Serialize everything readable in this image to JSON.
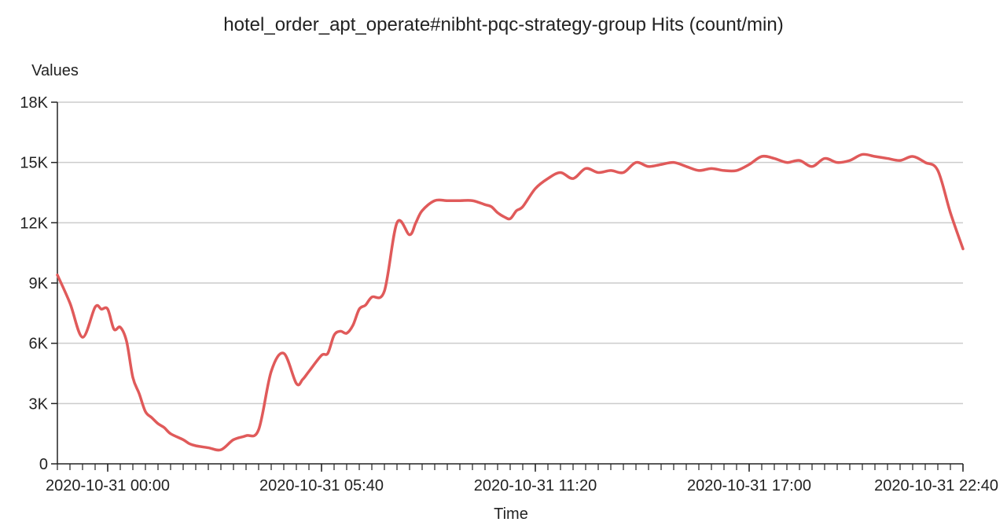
{
  "chart_data": {
    "type": "line",
    "title": "hotel_order_apt_operate#nibht-pqc-strategy-group Hits (count/min)",
    "xlabel": "Time",
    "ylabel": "Values",
    "ylim": [
      0,
      18000
    ],
    "yticks": [
      {
        "value": 0,
        "label": "0"
      },
      {
        "value": 3000,
        "label": "3K"
      },
      {
        "value": 6000,
        "label": "6K"
      },
      {
        "value": 9000,
        "label": "9K"
      },
      {
        "value": 12000,
        "label": "12K"
      },
      {
        "value": 15000,
        "label": "15K"
      },
      {
        "value": 18000,
        "label": "18K"
      }
    ],
    "xlim": [
      "2020-10-30 22:40",
      "2020-10-31 22:40"
    ],
    "xticks": [
      {
        "value": "2020-10-31 00:00",
        "label": "2020-10-31 00:00"
      },
      {
        "value": "2020-10-31 05:40",
        "label": "2020-10-31 05:40"
      },
      {
        "value": "2020-10-31 11:20",
        "label": "2020-10-31 11:20"
      },
      {
        "value": "2020-10-31 17:00",
        "label": "2020-10-31 17:00"
      },
      {
        "value": "2020-10-31 22:40",
        "label": "2020-10-31 22:40"
      }
    ],
    "minor_tick_minutes": 20,
    "grid": "horizontal",
    "legend": "none",
    "colors": {
      "line": "#e05a5a",
      "grid": "#cccccc",
      "axis": "#222222"
    },
    "series": [
      {
        "x": [
          "2020-10-30 22:40",
          "2020-10-30 23:00",
          "2020-10-30 23:20",
          "2020-10-30 23:40",
          "2020-10-30 23:50",
          "2020-10-31 00:00",
          "2020-10-31 00:10",
          "2020-10-31 00:20",
          "2020-10-31 00:30",
          "2020-10-31 00:40",
          "2020-10-31 00:50",
          "2020-10-31 01:00",
          "2020-10-31 01:10",
          "2020-10-31 01:20",
          "2020-10-31 01:30",
          "2020-10-31 01:40",
          "2020-10-31 02:00",
          "2020-10-31 02:10",
          "2020-10-31 02:20",
          "2020-10-31 02:40",
          "2020-10-31 03:00",
          "2020-10-31 03:20",
          "2020-10-31 03:40",
          "2020-10-31 04:00",
          "2020-10-31 04:20",
          "2020-10-31 04:40",
          "2020-10-31 05:00",
          "2020-10-31 05:10",
          "2020-10-31 05:20",
          "2020-10-31 05:40",
          "2020-10-31 05:50",
          "2020-10-31 06:00",
          "2020-10-31 06:10",
          "2020-10-31 06:20",
          "2020-10-31 06:30",
          "2020-10-31 06:40",
          "2020-10-31 06:50",
          "2020-10-31 07:00",
          "2020-10-31 07:20",
          "2020-10-31 07:40",
          "2020-10-31 08:00",
          "2020-10-31 08:10",
          "2020-10-31 08:20",
          "2020-10-31 08:40",
          "2020-10-31 09:00",
          "2020-10-31 09:20",
          "2020-10-31 09:40",
          "2020-10-31 10:00",
          "2020-10-31 10:10",
          "2020-10-31 10:20",
          "2020-10-31 10:30",
          "2020-10-31 10:40",
          "2020-10-31 10:50",
          "2020-10-31 11:00",
          "2020-10-31 11:20",
          "2020-10-31 11:40",
          "2020-10-31 12:00",
          "2020-10-31 12:20",
          "2020-10-31 12:40",
          "2020-10-31 13:00",
          "2020-10-31 13:20",
          "2020-10-31 13:40",
          "2020-10-31 14:00",
          "2020-10-31 14:20",
          "2020-10-31 14:40",
          "2020-10-31 15:00",
          "2020-10-31 15:20",
          "2020-10-31 15:40",
          "2020-10-31 16:00",
          "2020-10-31 16:20",
          "2020-10-31 16:40",
          "2020-10-31 17:00",
          "2020-10-31 17:20",
          "2020-10-31 17:40",
          "2020-10-31 18:00",
          "2020-10-31 18:20",
          "2020-10-31 18:40",
          "2020-10-31 19:00",
          "2020-10-31 19:20",
          "2020-10-31 19:40",
          "2020-10-31 20:00",
          "2020-10-31 20:20",
          "2020-10-31 20:40",
          "2020-10-31 21:00",
          "2020-10-31 21:20",
          "2020-10-31 21:40",
          "2020-10-31 22:00",
          "2020-10-31 22:20",
          "2020-10-31 22:40"
        ],
        "values": [
          9400,
          8000,
          6300,
          7800,
          7700,
          7700,
          6700,
          6800,
          6100,
          4300,
          3500,
          2600,
          2300,
          2000,
          1800,
          1500,
          1200,
          1000,
          900,
          800,
          700,
          1200,
          1400,
          1700,
          4600,
          5500,
          4000,
          4200,
          4600,
          5400,
          5500,
          6400,
          6600,
          6500,
          6900,
          7700,
          7900,
          8300,
          8600,
          12000,
          11400,
          12000,
          12600,
          13100,
          13100,
          13100,
          13100,
          12900,
          12800,
          12500,
          12300,
          12200,
          12600,
          12800,
          13700,
          14200,
          14500,
          14200,
          14700,
          14500,
          14600,
          14500,
          15000,
          14800,
          14900,
          15000,
          14800,
          14600,
          14700,
          14600,
          14600,
          14900,
          15300,
          15200,
          15000,
          15100,
          14800,
          15200,
          15000,
          15100,
          15400,
          15300,
          15200,
          15100,
          15300,
          15000,
          14600,
          12500,
          10700
        ]
      }
    ]
  }
}
